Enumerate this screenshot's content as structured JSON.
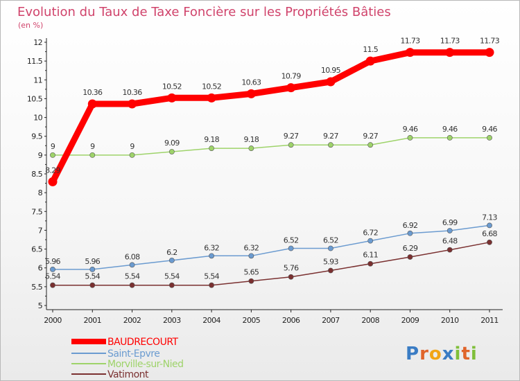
{
  "chart_data": {
    "type": "line",
    "title": "Evolution du Taux de Taxe Foncière sur les Propriétés Bâties",
    "subtitle": "(en %)",
    "xlabel": "",
    "ylabel": "",
    "x": [
      "2000",
      "2001",
      "2002",
      "2003",
      "2004",
      "2005",
      "2006",
      "2007",
      "2008",
      "2009",
      "2010",
      "2011"
    ],
    "ylim": [
      5,
      12
    ],
    "yticks": [
      "5",
      "5.5",
      "6",
      "6.5",
      "7",
      "7.5",
      "8",
      "8.5",
      "9",
      "9.5",
      "10",
      "10.5",
      "11",
      "11.5",
      "12"
    ],
    "grid": false,
    "legend_position": "bottom-left",
    "series": [
      {
        "name": "BAUDRECOURT",
        "color": "#ff0000",
        "values": [
          8.29,
          10.36,
          10.36,
          10.52,
          10.52,
          10.63,
          10.79,
          10.95,
          11.5,
          11.73,
          11.73,
          11.73
        ],
        "labels": [
          "8.29",
          "10.36",
          "10.36",
          "10.52",
          "10.52",
          "10.63",
          "10.79",
          "10.95",
          "11.5",
          "11.73",
          "11.73",
          "11.73"
        ]
      },
      {
        "name": "Saint-Epvre",
        "color": "#6b9bd0",
        "values": [
          5.96,
          5.96,
          6.08,
          6.2,
          6.32,
          6.32,
          6.52,
          6.52,
          6.72,
          6.92,
          6.99,
          7.13
        ],
        "labels": [
          "5.96",
          "5.96",
          "6.08",
          "6.2",
          "6.32",
          "6.32",
          "6.52",
          "6.52",
          "6.72",
          "6.92",
          "6.99",
          "7.13"
        ]
      },
      {
        "name": "Morville-sur-Nied",
        "color": "#9ed36a",
        "values": [
          9,
          9,
          9,
          9.09,
          9.18,
          9.18,
          9.27,
          9.27,
          9.27,
          9.46,
          9.46,
          9.46
        ],
        "labels": [
          "9",
          "9",
          "9",
          "9.09",
          "9.18",
          "9.18",
          "9.27",
          "9.27",
          "9.27",
          "9.46",
          "9.46",
          "9.46"
        ]
      },
      {
        "name": "Vatimont",
        "color": "#7a3030",
        "values": [
          5.54,
          5.54,
          5.54,
          5.54,
          5.54,
          5.65,
          5.76,
          5.93,
          6.11,
          6.29,
          6.48,
          6.68
        ],
        "labels": [
          "5.54",
          "5.54",
          "5.54",
          "5.54",
          "5.54",
          "5.65",
          "5.76",
          "5.93",
          "6.11",
          "6.29",
          "6.48",
          "6.68"
        ]
      }
    ]
  },
  "brand": {
    "text": "Proxiti",
    "letters": [
      "P",
      "r",
      "o",
      "x",
      "i",
      "t",
      "i"
    ],
    "colors": [
      "#3a7cc4",
      "#e0642a",
      "#f2a516",
      "#3a7cc4",
      "#7fbf3a",
      "#e0642a",
      "#7fbf3a"
    ]
  }
}
